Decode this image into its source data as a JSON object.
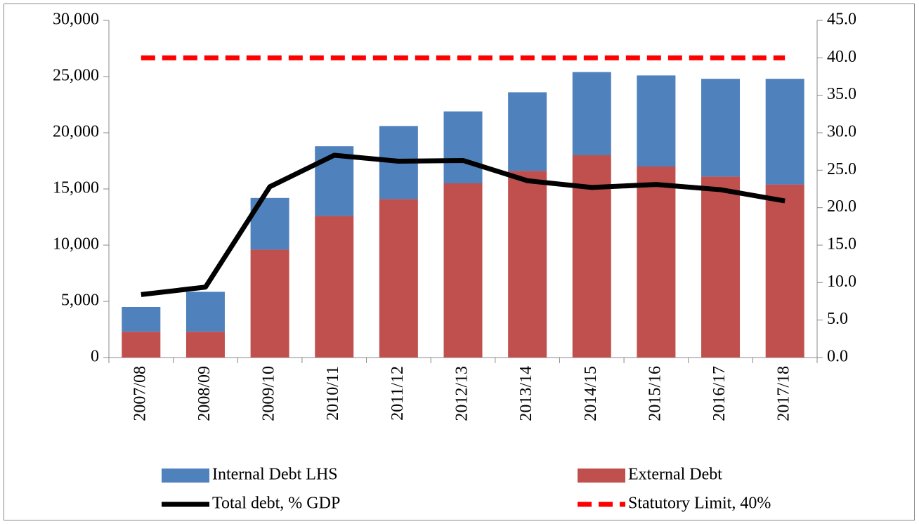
{
  "chart_data": {
    "type": "bar-line",
    "categories": [
      "2007/08",
      "2008/09",
      "2009/10",
      "2010/11",
      "2011/12",
      "2012/13",
      "2013/14",
      "2014/15",
      "2015/16",
      "2016/17",
      "2017/18"
    ],
    "series": [
      {
        "name": "Internal Debt LHS",
        "type": "bar",
        "color": "#4f81bd",
        "values": [
          2200,
          3550,
          4600,
          6200,
          6500,
          6400,
          7000,
          7400,
          8100,
          8700,
          9400
        ]
      },
      {
        "name": "External Debt",
        "type": "bar",
        "color": "#c0504d",
        "values": [
          2300,
          2300,
          9600,
          12600,
          14100,
          15500,
          16600,
          18000,
          17000,
          16100,
          15400
        ]
      },
      {
        "name": "Total debt, % GDP",
        "type": "line",
        "axis": "y2",
        "color": "#000000",
        "values": [
          8.4,
          9.4,
          22.8,
          27.0,
          26.2,
          26.3,
          23.6,
          22.7,
          23.1,
          22.4,
          20.9
        ]
      },
      {
        "name": "Statutory Limit, 40%",
        "type": "line",
        "axis": "y2",
        "color": "#ff0000",
        "dashed": true,
        "values": [
          40,
          40,
          40,
          40,
          40,
          40,
          40,
          40,
          40,
          40,
          40
        ]
      }
    ],
    "ylim": [
      0,
      30000
    ],
    "yticks": [
      0,
      {
        "value": 5000,
        "label": "5,000"
      },
      {
        "value": 10000,
        "label": "10,000"
      },
      {
        "value": 15000,
        "label": "15,000"
      },
      {
        "value": 20000,
        "label": "20,000"
      },
      {
        "value": 25000,
        "label": "25,000"
      },
      {
        "value": 30000,
        "label": "30,000"
      }
    ],
    "y2lim": [
      0,
      45
    ],
    "y2ticks": [
      {
        "value": 0,
        "label": "0.0"
      },
      {
        "value": 5,
        "label": "5.0"
      },
      {
        "value": 10,
        "label": "10.0"
      },
      {
        "value": 15,
        "label": "15.0"
      },
      {
        "value": 20,
        "label": "20.0"
      },
      {
        "value": 25,
        "label": "25.0"
      },
      {
        "value": 30,
        "label": "30.0"
      },
      {
        "value": 35,
        "label": "35.0"
      },
      {
        "value": 40,
        "label": "40.0"
      },
      {
        "value": 45,
        "label": "45.0"
      }
    ],
    "legend": "bottom"
  }
}
